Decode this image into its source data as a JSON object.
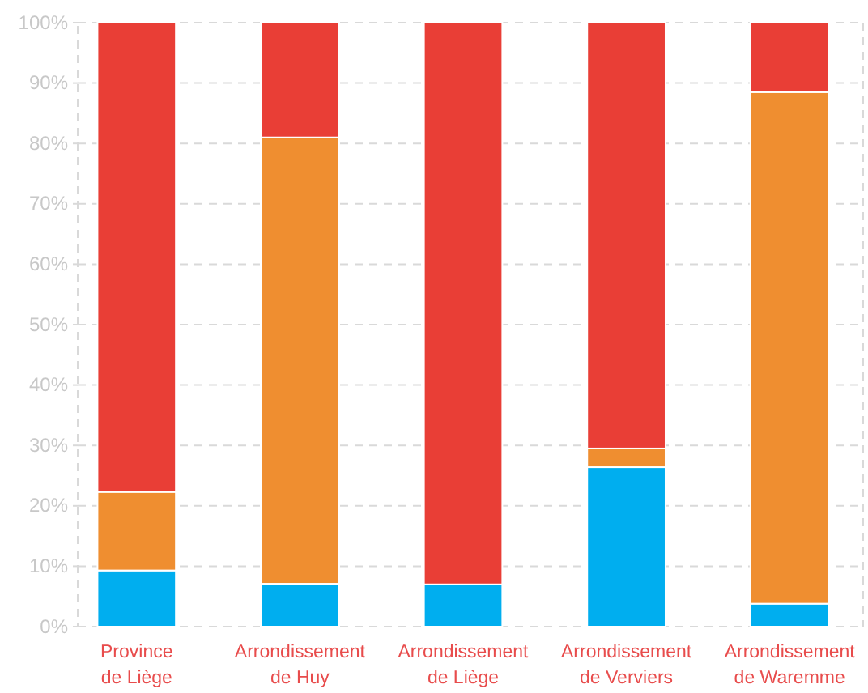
{
  "chart_data": {
    "type": "bar",
    "stacked": true,
    "categories": [
      "Province de Liège",
      "Arrondissement de Huy",
      "Arrondissement de Liège",
      "Arrondissement de Verviers",
      "Arrondissement de Waremme"
    ],
    "series": [
      {
        "color": "#00aeef",
        "values": [
          9.3,
          7.1,
          7.0,
          26.4,
          3.8
        ]
      },
      {
        "color": "#ef8e30",
        "values": [
          13.0,
          73.9,
          0,
          3.1,
          84.7
        ]
      },
      {
        "color": "#e93e36",
        "values": [
          77.7,
          19.0,
          93.0,
          70.5,
          11.5
        ]
      }
    ],
    "ylim": [
      0,
      100
    ],
    "yticks": [
      {
        "value": 0,
        "label": "0%"
      },
      {
        "value": 10,
        "label": "10%"
      },
      {
        "value": 20,
        "label": "20%"
      },
      {
        "value": 30,
        "label": "30%"
      },
      {
        "value": 40,
        "label": "40%"
      },
      {
        "value": 50,
        "label": "50%"
      },
      {
        "value": 60,
        "label": "60%"
      },
      {
        "value": 70,
        "label": "70%"
      },
      {
        "value": 80,
        "label": "80%"
      },
      {
        "value": 90,
        "label": "90%"
      },
      {
        "value": 100,
        "label": "100%"
      }
    ],
    "grid": "y"
  }
}
